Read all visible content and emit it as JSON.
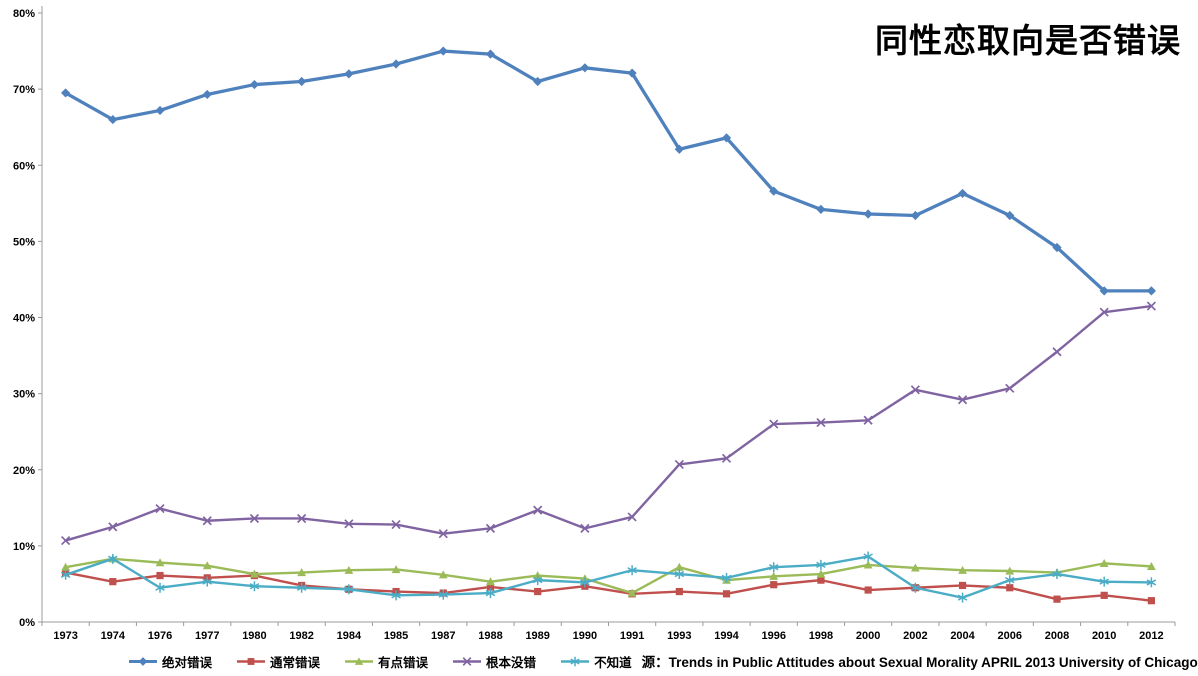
{
  "title": "同性恋取向是否错误",
  "source_label": "源：Trends in Public Attitudes about Sexual Morality APRIL 2013 University of Chicago",
  "chart_data": {
    "type": "line",
    "title": "同性恋取向是否错误",
    "xlabel": "",
    "ylabel": "",
    "ylim": [
      0,
      80
    ],
    "yticks": [
      "0%",
      "10%",
      "20%",
      "30%",
      "40%",
      "50%",
      "60%",
      "70%",
      "80%"
    ],
    "grid": false,
    "legend_position": "bottom",
    "categories": [
      "1973",
      "1974",
      "1976",
      "1977",
      "1980",
      "1982",
      "1984",
      "1985",
      "1987",
      "1988",
      "1989",
      "1990",
      "1991",
      "1993",
      "1994",
      "1996",
      "1998",
      "2000",
      "2002",
      "2004",
      "2006",
      "2008",
      "2010",
      "2012"
    ],
    "series": [
      {
        "name": "绝对错误",
        "color": "#4F81BD",
        "marker": "diamond",
        "values": [
          69.5,
          66.0,
          67.2,
          69.3,
          70.6,
          71.0,
          72.0,
          73.3,
          75.0,
          74.6,
          71.0,
          72.8,
          72.1,
          62.1,
          63.6,
          56.6,
          54.2,
          53.6,
          53.4,
          56.3,
          53.4,
          49.2,
          43.5,
          43.5
        ]
      },
      {
        "name": "通常错误",
        "color": "#C0504D",
        "marker": "square",
        "values": [
          6.5,
          5.3,
          6.1,
          5.8,
          6.1,
          4.8,
          4.3,
          4.0,
          3.8,
          4.6,
          4.0,
          4.7,
          3.7,
          4.0,
          3.7,
          4.9,
          5.5,
          4.2,
          4.5,
          4.8,
          4.5,
          3.0,
          3.5,
          2.8
        ]
      },
      {
        "name": "有点错误",
        "color": "#9BBB59",
        "marker": "triangle",
        "values": [
          7.2,
          8.3,
          7.8,
          7.4,
          6.3,
          6.5,
          6.8,
          6.9,
          6.2,
          5.3,
          6.1,
          5.7,
          3.8,
          7.2,
          5.5,
          6.0,
          6.3,
          7.5,
          7.1,
          6.8,
          6.7,
          6.5,
          7.7,
          7.3
        ]
      },
      {
        "name": "根本没错",
        "color": "#8064A2",
        "marker": "x",
        "values": [
          10.7,
          12.5,
          14.9,
          13.3,
          13.6,
          13.6,
          12.9,
          12.8,
          11.6,
          12.3,
          14.7,
          12.3,
          13.8,
          20.7,
          21.5,
          26.0,
          26.2,
          26.5,
          30.5,
          29.2,
          30.7,
          35.5,
          40.7,
          41.5
        ]
      },
      {
        "name": "不知道",
        "color": "#4BACC6",
        "marker": "asterisk",
        "values": [
          6.2,
          8.3,
          4.5,
          5.3,
          4.7,
          4.5,
          4.3,
          3.5,
          3.6,
          3.8,
          5.5,
          5.2,
          6.8,
          6.3,
          5.8,
          7.2,
          7.5,
          8.6,
          4.5,
          3.2,
          5.5,
          6.3,
          5.3,
          5.2
        ]
      }
    ]
  }
}
